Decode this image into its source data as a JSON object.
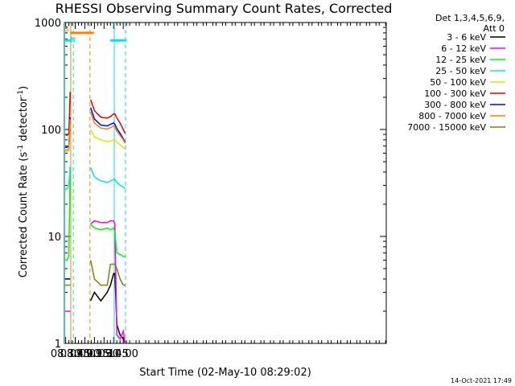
{
  "chart_data": {
    "type": "line",
    "title": "RHESSI Observing Summary Count Rates, Corrected",
    "xlabel": "Start Time (02-May-10 08:29:02)",
    "ylabel": "Corrected Count Rate (s⁻¹ detector⁻¹)",
    "y_scale": "log",
    "ylim": [
      1,
      1000
    ],
    "xlim_minutes_of_day": [
      508,
      1011
    ],
    "x_tick_labels": [
      "08:30",
      "08:45",
      "09:00",
      "09:15",
      "09:30",
      "09:45",
      "10:00"
    ],
    "x_tick_minutes": [
      510,
      525,
      540,
      555,
      570,
      585,
      600
    ],
    "y_tick_labels": [
      "1",
      "10",
      "100",
      "1000"
    ],
    "y_tick_values": [
      1,
      10,
      100,
      1000
    ],
    "legend_title": [
      "Det 1,3,4,5,6,9,",
      "Att 0"
    ],
    "legend_position": "right",
    "timestamp": "14-Oct-2021 17:49",
    "flags": [
      {
        "label": "S",
        "color": "#ff8000",
        "x_start": 517,
        "x_end": 554,
        "y": 800
      },
      {
        "label": "N",
        "color": "#00e5e5",
        "x_start": 508,
        "x_end": 520,
        "y": 680
      },
      {
        "label": "",
        "color": "#00e5e5",
        "x_start": 580,
        "x_end": 605,
        "y": 680
      }
    ],
    "vlines": [
      {
        "x": 508.5,
        "color": "#00e5e5",
        "style": "solid"
      },
      {
        "x": 518,
        "color": "#ff8000",
        "style": "solid"
      },
      {
        "x": 522,
        "color": "#00e5e5",
        "style": "dashed"
      },
      {
        "x": 548,
        "color": "#ff8000",
        "style": "dashed"
      },
      {
        "x": 586,
        "color": "#00e5e5",
        "style": "solid"
      },
      {
        "x": 603.5,
        "color": "#00e5e5",
        "style": "dashed"
      }
    ],
    "series": [
      {
        "name": "3 - 6 keV",
        "color": "#000000",
        "seg1": {
          "x": [
            509,
            512,
            515,
            517
          ],
          "y": [
            4,
            4,
            4,
            4
          ]
        },
        "seg2": {
          "x": [
            549,
            555,
            565,
            575,
            580,
            585,
            587,
            590,
            595,
            600,
            603
          ],
          "y": [
            2.5,
            3,
            2.5,
            3,
            3.5,
            4.5,
            4.5,
            1.5,
            1.2,
            1.1,
            1
          ]
        }
      },
      {
        "name": "6 - 12 keV",
        "color": "#ff00ff",
        "seg1": {
          "x": [
            509,
            512,
            515,
            517
          ],
          "y": [
            2,
            2,
            2,
            2
          ]
        },
        "seg2": {
          "x": [
            549,
            555,
            565,
            575,
            580,
            585,
            587,
            590,
            595,
            600,
            603
          ],
          "y": [
            13,
            14,
            13.5,
            13.5,
            14,
            14,
            13,
            1.2,
            1.1,
            1.3,
            1
          ]
        }
      },
      {
        "name": "12 - 25 keV",
        "color": "#00ff00",
        "seg1": {
          "x": [
            509,
            512,
            515,
            517
          ],
          "y": [
            6,
            6,
            6.5,
            45
          ]
        },
        "seg2": {
          "x": [
            549,
            555,
            565,
            575,
            580,
            585,
            587,
            590,
            595,
            600,
            603
          ],
          "y": [
            13,
            12,
            11.5,
            12,
            11.5,
            12,
            11,
            7,
            6.8,
            6.5,
            6.5
          ]
        }
      },
      {
        "name": "25 - 50 keV",
        "color": "#00e5e5",
        "seg1": {
          "x": [
            509,
            512,
            515,
            517
          ],
          "y": [
            27,
            28,
            30,
            45
          ]
        },
        "seg2": {
          "x": [
            549,
            555,
            565,
            575,
            580,
            585,
            587,
            590,
            595,
            600,
            603
          ],
          "y": [
            44,
            36,
            33,
            32,
            33,
            34,
            34,
            32,
            30,
            29,
            28
          ]
        }
      },
      {
        "name": "50 - 100 keV",
        "color": "#e5e500",
        "seg1": {
          "x": [
            509,
            512,
            515,
            517
          ],
          "y": [
            62,
            62,
            64,
            110
          ]
        },
        "seg2": {
          "x": [
            549,
            555,
            565,
            575,
            580,
            585,
            587,
            590,
            595,
            600,
            603
          ],
          "y": [
            100,
            85,
            80,
            77,
            78,
            80,
            80,
            76,
            72,
            68,
            66
          ]
        }
      },
      {
        "name": "100 - 300 keV",
        "color": "#e50000",
        "seg1": {
          "x": [
            509,
            512,
            515,
            517
          ],
          "y": [
            90,
            88,
            92,
            225
          ]
        },
        "seg2": {
          "x": [
            549,
            555,
            565,
            575,
            580,
            585,
            587,
            590,
            595,
            600,
            603
          ],
          "y": [
            190,
            150,
            130,
            128,
            132,
            140,
            140,
            128,
            115,
            100,
            92
          ]
        }
      },
      {
        "name": "300 - 800 keV",
        "color": "#0000ff",
        "seg1": {
          "x": [
            509,
            512,
            515,
            517
          ],
          "y": [
            68,
            68,
            70,
            130
          ]
        },
        "seg2": {
          "x": [
            549,
            555,
            565,
            575,
            580,
            585,
            587,
            590,
            595,
            600,
            603
          ],
          "y": [
            160,
            125,
            110,
            108,
            112,
            115,
            112,
            102,
            92,
            82,
            76
          ]
        }
      },
      {
        "name": "800 - 7000 keV",
        "color": "#ff8000",
        "seg1": {
          "x": [
            509,
            512,
            515,
            517
          ],
          "y": [
            64,
            64,
            66,
            125
          ]
        },
        "seg2": {
          "x": [
            549,
            555,
            565,
            575,
            580,
            585,
            587,
            590,
            595,
            600,
            603
          ],
          "y": [
            145,
            115,
            103,
            101,
            104,
            108,
            105,
            96,
            88,
            80,
            74
          ]
        }
      },
      {
        "name": "7000 - 15000 keV",
        "color": "#808000",
        "seg1": {
          "x": [
            509,
            512,
            515,
            517
          ],
          "y": [
            3.5,
            3.5,
            3.5,
            3.5
          ]
        },
        "seg2": {
          "x": [
            549,
            555,
            565,
            575,
            580,
            585,
            587,
            590,
            595,
            600,
            603
          ],
          "y": [
            6,
            4,
            3.5,
            3.5,
            5.5,
            5.5,
            5.5,
            5,
            4,
            3.5,
            3.5
          ]
        }
      }
    ]
  }
}
